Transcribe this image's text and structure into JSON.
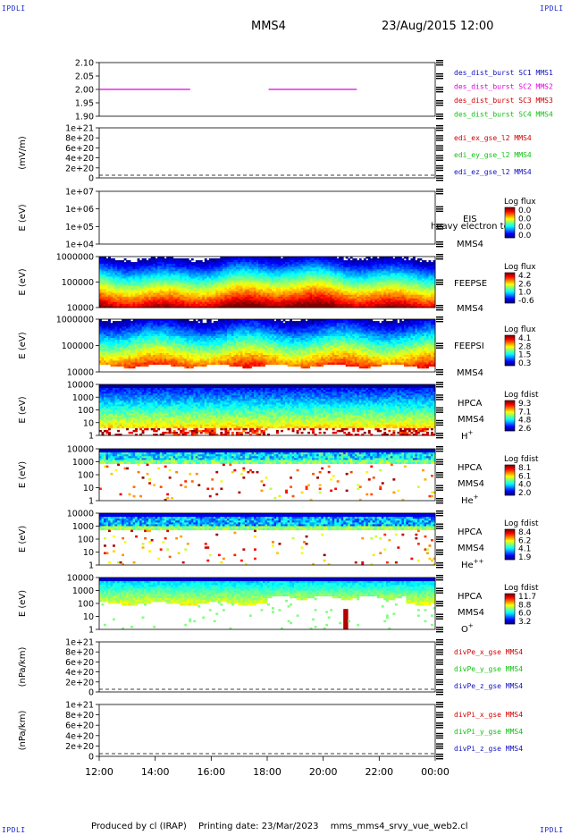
{
  "header": {
    "spacecraft": "MMS4",
    "date": "23/Aug/2015 12:00"
  },
  "corner_label": "IPDLI",
  "footer": {
    "produced": "Produced by cl (IRAP)",
    "printing": "Printing date: 23/Mar/2023",
    "file": "mms_mms4_srvy_vue_web2.cl"
  },
  "colors": {
    "mms1": "#1010c0",
    "mms2": "#e000e0",
    "mms3": "#d00000",
    "mms4": "#10c010",
    "x": "#d00000",
    "y": "#10c010",
    "z": "#1010c0"
  },
  "time_axis": {
    "ticks": [
      "12:00",
      "14:00",
      "16:00",
      "18:00",
      "20:00",
      "22:00",
      "00:00"
    ]
  },
  "chart_data": [
    {
      "type": "line",
      "id": "p1",
      "yticks": [
        "2.10",
        "2.05",
        "2.00",
        "1.95",
        "1.90"
      ],
      "ylim": [
        1.9,
        2.1
      ],
      "series": [
        {
          "name": "des_dist_burst SC1 MMS1",
          "color": "mms1",
          "segments": []
        },
        {
          "name": "des_dist_burst SC2 MMS2",
          "color": "mms2",
          "segments": [
            [
              12.0,
              15.25,
              2.0
            ],
            [
              18.05,
              21.2,
              2.0
            ]
          ]
        },
        {
          "name": "des_dist_burst SC3 MMS3",
          "color": "mms3",
          "segments": []
        },
        {
          "name": "des_dist_burst SC4 MMS4",
          "color": "mms4",
          "segments": []
        }
      ]
    },
    {
      "type": "line",
      "id": "p2",
      "ylabel": "(mV/m)",
      "yticks": [
        "1e+21",
        "8e+20",
        "6e+20",
        "4e+20",
        "2e+20",
        "0"
      ],
      "ylim": [
        0,
        1e+21
      ],
      "series": [
        {
          "name": "edi_ex_gse_l2 MMS4",
          "color": "x"
        },
        {
          "name": "edi_ey_gse_l2 MMS4",
          "color": "y"
        },
        {
          "name": "edi_ez_gse_l2 MMS4",
          "color": "z"
        }
      ]
    },
    {
      "type": "heatmap",
      "id": "p3",
      "ylabel": "E (eV)",
      "yticks": [
        "1e+07",
        "1e+06",
        "1e+05",
        "1e+04"
      ],
      "ylim": [
        10000,
        10000000
      ],
      "scale": "log",
      "labels": [
        "EIS",
        "heavy electron to",
        "MMS4"
      ],
      "colorbar": {
        "title": "Log flux",
        "ticks": [
          "0.0",
          "0.0",
          "0.0",
          "0.0"
        ]
      },
      "fill": "none"
    },
    {
      "type": "heatmap",
      "id": "p4",
      "ylabel": "E (eV)",
      "yticks": [
        "1000000",
        "100000",
        "10000"
      ],
      "ylim": [
        10000,
        1000000
      ],
      "scale": "log",
      "labels": [
        "FEEPSE",
        "MMS4"
      ],
      "colorbar": {
        "title": "Log flux",
        "ticks": [
          "4.2",
          "2.6",
          "1.0",
          "-0.6"
        ]
      },
      "fill": "feepse"
    },
    {
      "type": "heatmap",
      "id": "p5",
      "ylabel": "E (eV)",
      "yticks": [
        "1000000",
        "100000",
        "10000"
      ],
      "ylim": [
        10000,
        1000000
      ],
      "scale": "log",
      "labels": [
        "FEEPSI",
        "MMS4"
      ],
      "colorbar": {
        "title": "Log flux",
        "ticks": [
          "4.1",
          "2.8",
          "1.5",
          "0.3"
        ]
      },
      "fill": "feepsi"
    },
    {
      "type": "heatmap",
      "id": "p6",
      "ylabel": "E (eV)",
      "yticks": [
        "10000",
        "1000",
        "100",
        "10",
        "1"
      ],
      "ylim": [
        1,
        30000
      ],
      "scale": "log",
      "labels": [
        "HPCA",
        "MMS4",
        "H+"
      ],
      "colorbar": {
        "title": "Log fdist",
        "ticks": [
          "9.3",
          "7.1",
          "4.8",
          "2.6"
        ]
      },
      "fill": "hplus"
    },
    {
      "type": "heatmap",
      "id": "p7",
      "ylabel": "E (eV)",
      "yticks": [
        "10000",
        "1000",
        "100",
        "10",
        "1"
      ],
      "ylim": [
        1,
        30000
      ],
      "scale": "log",
      "labels": [
        "HPCA",
        "MMS4",
        "He+"
      ],
      "colorbar": {
        "title": "Log fdist",
        "ticks": [
          "8.1",
          "6.1",
          "4.0",
          "2.0"
        ]
      },
      "fill": "heplus"
    },
    {
      "type": "heatmap",
      "id": "p8",
      "ylabel": "E (eV)",
      "yticks": [
        "10000",
        "1000",
        "100",
        "10",
        "1"
      ],
      "ylim": [
        1,
        30000
      ],
      "scale": "log",
      "labels": [
        "HPCA",
        "MMS4",
        "He++"
      ],
      "colorbar": {
        "title": "Log fdist",
        "ticks": [
          "8.4",
          "6.2",
          "4.1",
          "1.9"
        ]
      },
      "fill": "hepp"
    },
    {
      "type": "heatmap",
      "id": "p9",
      "ylabel": "E (eV)",
      "yticks": [
        "10000",
        "1000",
        "100",
        "10",
        "1"
      ],
      "ylim": [
        1,
        30000
      ],
      "scale": "log",
      "labels": [
        "HPCA",
        "MMS4",
        "O+"
      ],
      "colorbar": {
        "title": "Log fdist",
        "ticks": [
          "11.7",
          "8.8",
          "6.0",
          "3.2"
        ]
      },
      "fill": "oplus"
    },
    {
      "type": "line",
      "id": "p10",
      "ylabel": "(nPa/km)",
      "yticks": [
        "1e+21",
        "8e+20",
        "6e+20",
        "4e+20",
        "2e+20",
        "0"
      ],
      "ylim": [
        0,
        1e+21
      ],
      "series": [
        {
          "name": "divPe_x_gse MMS4",
          "color": "x"
        },
        {
          "name": "divPe_y_gse MMS4",
          "color": "y"
        },
        {
          "name": "divPe_z_gse MMS4",
          "color": "z"
        }
      ]
    },
    {
      "type": "line",
      "id": "p11",
      "ylabel": "(nPa/km)",
      "yticks": [
        "1e+21",
        "8e+20",
        "6e+20",
        "4e+20",
        "2e+20",
        "0"
      ],
      "ylim": [
        0,
        1e+21
      ],
      "series": [
        {
          "name": "divPi_x_gse MMS4",
          "color": "x"
        },
        {
          "name": "divPi_y_gse MMS4",
          "color": "y"
        },
        {
          "name": "divPi_z_gse MMS4",
          "color": "z"
        }
      ]
    }
  ]
}
